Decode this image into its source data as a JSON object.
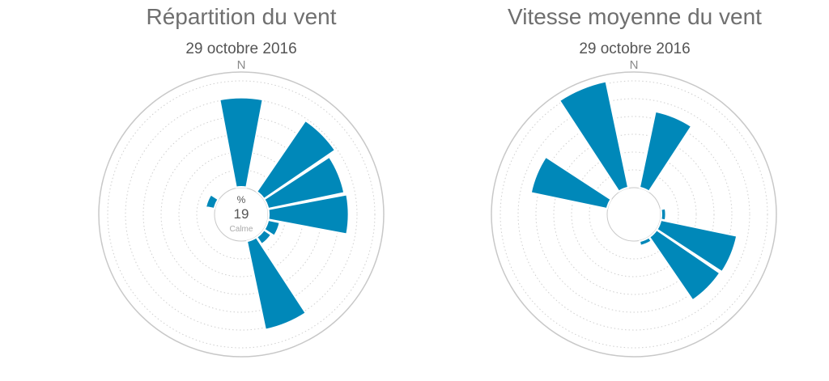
{
  "chart_data": [
    {
      "type": "polar-bar",
      "title": "Répartition du vent",
      "subtitle": "29 octobre 2016",
      "north_label": "N",
      "center": {
        "unit": "%",
        "value": "19",
        "label": "Calme"
      },
      "grid": "dotted rings",
      "color": "#0088b9",
      "sectors": [
        {
          "direction": 0,
          "value": 8.5
        },
        {
          "direction": 22.5,
          "value": 0
        },
        {
          "direction": 45,
          "value": 8.2
        },
        {
          "direction": 67.5,
          "value": 7.4
        },
        {
          "direction": 90,
          "value": 7.6
        },
        {
          "direction": 112.5,
          "value": 1.2
        },
        {
          "direction": 135,
          "value": 0.9
        },
        {
          "direction": 157.5,
          "value": 8.6
        },
        {
          "direction": 180,
          "value": 0
        },
        {
          "direction": 202.5,
          "value": 0
        },
        {
          "direction": 225,
          "value": 0
        },
        {
          "direction": 247.5,
          "value": 0
        },
        {
          "direction": 270,
          "value": 0
        },
        {
          "direction": 292.5,
          "value": 0.9
        },
        {
          "direction": 315,
          "value": 0
        },
        {
          "direction": 337.5,
          "value": 0
        }
      ]
    },
    {
      "type": "polar-bar",
      "title": "Vitesse moyenne du vent",
      "subtitle": "29 octobre 2016",
      "north_label": "N",
      "grid": "dotted rings",
      "color": "#0088b9",
      "sectors": [
        {
          "direction": 0,
          "value": 0
        },
        {
          "direction": 22.5,
          "value": 7.4
        },
        {
          "direction": 45,
          "value": 0
        },
        {
          "direction": 67.5,
          "value": 0
        },
        {
          "direction": 90,
          "value": 0.5
        },
        {
          "direction": 112.5,
          "value": 7.4
        },
        {
          "direction": 135,
          "value": 7.3
        },
        {
          "direction": 157.5,
          "value": 0.5
        },
        {
          "direction": 180,
          "value": 0
        },
        {
          "direction": 202.5,
          "value": 0
        },
        {
          "direction": 225,
          "value": 0
        },
        {
          "direction": 247.5,
          "value": 0
        },
        {
          "direction": 270,
          "value": 0
        },
        {
          "direction": 292.5,
          "value": 7.4
        },
        {
          "direction": 315,
          "value": 0
        },
        {
          "direction": 337.5,
          "value": 10.3
        }
      ]
    }
  ]
}
